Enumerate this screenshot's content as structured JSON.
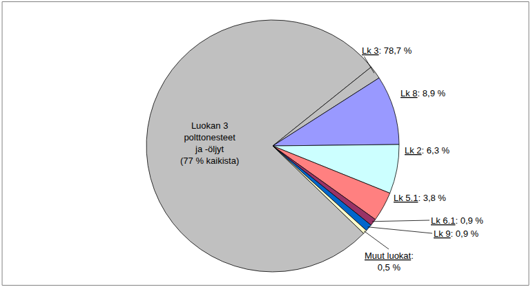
{
  "chart_data": {
    "type": "pie",
    "categories": [
      "Lk 3",
      "Lk 8",
      "Lk 2",
      "Lk 5.1",
      "Lk 6.1",
      "Lk 9",
      "Muut luokat"
    ],
    "values": [
      78.7,
      8.9,
      6.3,
      3.8,
      0.9,
      0.9,
      0.5
    ],
    "value_labels": [
      "Lk 3: 78,7 %",
      "Lk 8: 8,9 %",
      "Lk 2: 6,3 %",
      "Lk 5.1: 3,8 %",
      "Lk 6.1: 0,9 %",
      "Lk 9: 0,9 %",
      "Muut luokat:\n0,5 %"
    ],
    "colors": [
      "#c0c0c0",
      "#9999ff",
      "#ccffff",
      "#ff8080",
      "#993366",
      "#0066cc",
      "#ffffcc"
    ],
    "subslice": {
      "category": "Lk 3",
      "value": 77,
      "label": "Luokan 3\npolttonesteet\nja -öljyt\n(77 % kaikista)"
    },
    "data_labels": true
  }
}
